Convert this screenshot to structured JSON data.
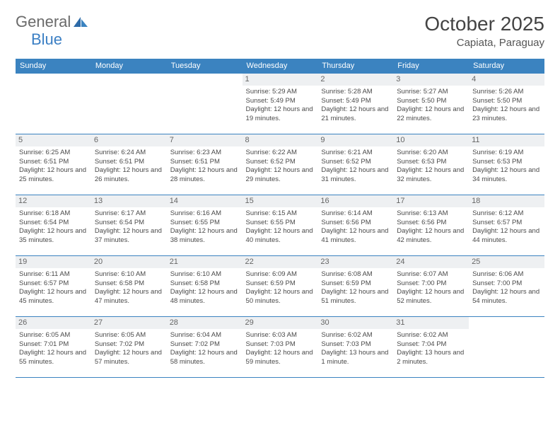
{
  "logo": {
    "text1": "General",
    "text2": "Blue"
  },
  "title": "October 2025",
  "location": "Capiata, Paraguay",
  "header_color": "#3b83c0",
  "border_color": "#3b83c0",
  "daynum_bg": "#eef0f2",
  "weekdays": [
    "Sunday",
    "Monday",
    "Tuesday",
    "Wednesday",
    "Thursday",
    "Friday",
    "Saturday"
  ],
  "weeks": [
    [
      null,
      null,
      null,
      {
        "n": "1",
        "sr": "5:29 AM",
        "ss": "5:49 PM",
        "dl": "12 hours and 19 minutes."
      },
      {
        "n": "2",
        "sr": "5:28 AM",
        "ss": "5:49 PM",
        "dl": "12 hours and 21 minutes."
      },
      {
        "n": "3",
        "sr": "5:27 AM",
        "ss": "5:50 PM",
        "dl": "12 hours and 22 minutes."
      },
      {
        "n": "4",
        "sr": "5:26 AM",
        "ss": "5:50 PM",
        "dl": "12 hours and 23 minutes."
      }
    ],
    [
      {
        "n": "5",
        "sr": "6:25 AM",
        "ss": "6:51 PM",
        "dl": "12 hours and 25 minutes."
      },
      {
        "n": "6",
        "sr": "6:24 AM",
        "ss": "6:51 PM",
        "dl": "12 hours and 26 minutes."
      },
      {
        "n": "7",
        "sr": "6:23 AM",
        "ss": "6:51 PM",
        "dl": "12 hours and 28 minutes."
      },
      {
        "n": "8",
        "sr": "6:22 AM",
        "ss": "6:52 PM",
        "dl": "12 hours and 29 minutes."
      },
      {
        "n": "9",
        "sr": "6:21 AM",
        "ss": "6:52 PM",
        "dl": "12 hours and 31 minutes."
      },
      {
        "n": "10",
        "sr": "6:20 AM",
        "ss": "6:53 PM",
        "dl": "12 hours and 32 minutes."
      },
      {
        "n": "11",
        "sr": "6:19 AM",
        "ss": "6:53 PM",
        "dl": "12 hours and 34 minutes."
      }
    ],
    [
      {
        "n": "12",
        "sr": "6:18 AM",
        "ss": "6:54 PM",
        "dl": "12 hours and 35 minutes."
      },
      {
        "n": "13",
        "sr": "6:17 AM",
        "ss": "6:54 PM",
        "dl": "12 hours and 37 minutes."
      },
      {
        "n": "14",
        "sr": "6:16 AM",
        "ss": "6:55 PM",
        "dl": "12 hours and 38 minutes."
      },
      {
        "n": "15",
        "sr": "6:15 AM",
        "ss": "6:55 PM",
        "dl": "12 hours and 40 minutes."
      },
      {
        "n": "16",
        "sr": "6:14 AM",
        "ss": "6:56 PM",
        "dl": "12 hours and 41 minutes."
      },
      {
        "n": "17",
        "sr": "6:13 AM",
        "ss": "6:56 PM",
        "dl": "12 hours and 42 minutes."
      },
      {
        "n": "18",
        "sr": "6:12 AM",
        "ss": "6:57 PM",
        "dl": "12 hours and 44 minutes."
      }
    ],
    [
      {
        "n": "19",
        "sr": "6:11 AM",
        "ss": "6:57 PM",
        "dl": "12 hours and 45 minutes."
      },
      {
        "n": "20",
        "sr": "6:10 AM",
        "ss": "6:58 PM",
        "dl": "12 hours and 47 minutes."
      },
      {
        "n": "21",
        "sr": "6:10 AM",
        "ss": "6:58 PM",
        "dl": "12 hours and 48 minutes."
      },
      {
        "n": "22",
        "sr": "6:09 AM",
        "ss": "6:59 PM",
        "dl": "12 hours and 50 minutes."
      },
      {
        "n": "23",
        "sr": "6:08 AM",
        "ss": "6:59 PM",
        "dl": "12 hours and 51 minutes."
      },
      {
        "n": "24",
        "sr": "6:07 AM",
        "ss": "7:00 PM",
        "dl": "12 hours and 52 minutes."
      },
      {
        "n": "25",
        "sr": "6:06 AM",
        "ss": "7:00 PM",
        "dl": "12 hours and 54 minutes."
      }
    ],
    [
      {
        "n": "26",
        "sr": "6:05 AM",
        "ss": "7:01 PM",
        "dl": "12 hours and 55 minutes."
      },
      {
        "n": "27",
        "sr": "6:05 AM",
        "ss": "7:02 PM",
        "dl": "12 hours and 57 minutes."
      },
      {
        "n": "28",
        "sr": "6:04 AM",
        "ss": "7:02 PM",
        "dl": "12 hours and 58 minutes."
      },
      {
        "n": "29",
        "sr": "6:03 AM",
        "ss": "7:03 PM",
        "dl": "12 hours and 59 minutes."
      },
      {
        "n": "30",
        "sr": "6:02 AM",
        "ss": "7:03 PM",
        "dl": "13 hours and 1 minute."
      },
      {
        "n": "31",
        "sr": "6:02 AM",
        "ss": "7:04 PM",
        "dl": "13 hours and 2 minutes."
      },
      null
    ]
  ],
  "labels": {
    "sunrise": "Sunrise: ",
    "sunset": "Sunset: ",
    "daylight": "Daylight: "
  }
}
